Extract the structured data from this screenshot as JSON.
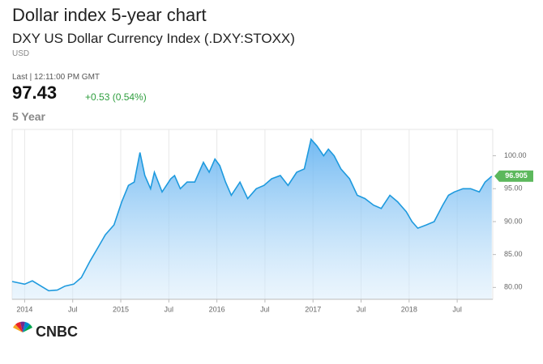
{
  "header": {
    "title": "Dollar index 5-year chart",
    "subtitle": "DXY US Dollar Currency Index (.DXY:STOXX)",
    "currency": "USD",
    "last_time": "Last | 12:11:00 PM GMT",
    "price": "97.43",
    "change": "+0.53 (0.54%)",
    "period": "5 Year"
  },
  "chart_data": {
    "type": "area",
    "color": "#1e9ade",
    "x": [
      2013.87,
      2014.0,
      2014.08,
      2014.17,
      2014.25,
      2014.34,
      2014.42,
      2014.51,
      2014.59,
      2014.68,
      2014.76,
      2014.84,
      2014.93,
      2015.01,
      2015.08,
      2015.14,
      2015.2,
      2015.25,
      2015.31,
      2015.35,
      2015.43,
      2015.52,
      2015.56,
      2015.62,
      2015.69,
      2015.77,
      2015.86,
      2015.92,
      2015.98,
      2016.03,
      2016.09,
      2016.15,
      2016.24,
      2016.32,
      2016.41,
      2016.49,
      2016.57,
      2016.66,
      2016.74,
      2016.83,
      2016.91,
      2016.98,
      2017.04,
      2017.11,
      2017.16,
      2017.22,
      2017.29,
      2017.38,
      2017.46,
      2017.54,
      2017.63,
      2017.71,
      2017.8,
      2017.88,
      2017.97,
      2018.03,
      2018.09,
      2018.18,
      2018.26,
      2018.35,
      2018.41,
      2018.47,
      2018.56,
      2018.64,
      2018.73,
      2018.79,
      2018.86
    ],
    "values": [
      80.9,
      80.5,
      81,
      80.2,
      79.5,
      79.6,
      80.2,
      80.5,
      81.5,
      84,
      86,
      88,
      89.5,
      93,
      95.5,
      96,
      100.5,
      97,
      95,
      97.5,
      94.5,
      96.5,
      97,
      95,
      96,
      96,
      99,
      97.5,
      99.5,
      98.5,
      96,
      94,
      96,
      93.5,
      95,
      95.5,
      96.5,
      97,
      95.5,
      97.5,
      98,
      102.5,
      101.5,
      100,
      101,
      100,
      98,
      96.5,
      94,
      93.5,
      92.5,
      92,
      94,
      93,
      91.5,
      90,
      89,
      89.5,
      90,
      92.5,
      94,
      94.5,
      95,
      95,
      94.5,
      96,
      96.905
    ],
    "xlim": [
      2013.87,
      2018.87
    ],
    "ylim": [
      78.2,
      104
    ],
    "xticks": [
      {
        "value": 2014,
        "label": "2014"
      },
      {
        "value": 2014.5,
        "label": "Jul"
      },
      {
        "value": 2015,
        "label": "2015"
      },
      {
        "value": 2015.5,
        "label": "Jul"
      },
      {
        "value": 2016,
        "label": "2016"
      },
      {
        "value": 2016.5,
        "label": "Jul"
      },
      {
        "value": 2017,
        "label": "2017"
      },
      {
        "value": 2017.5,
        "label": "Jul"
      },
      {
        "value": 2018,
        "label": "2018"
      },
      {
        "value": 2018.5,
        "label": "Jul"
      }
    ],
    "yticks": [
      {
        "value": 80,
        "label": "80.00"
      },
      {
        "value": 85,
        "label": "85.00"
      },
      {
        "value": 90,
        "label": "90.00"
      },
      {
        "value": 95,
        "label": "95.00"
      },
      {
        "value": 100,
        "label": "100.00"
      }
    ],
    "grid": true
  },
  "footer": {
    "logo": "CNBC"
  }
}
